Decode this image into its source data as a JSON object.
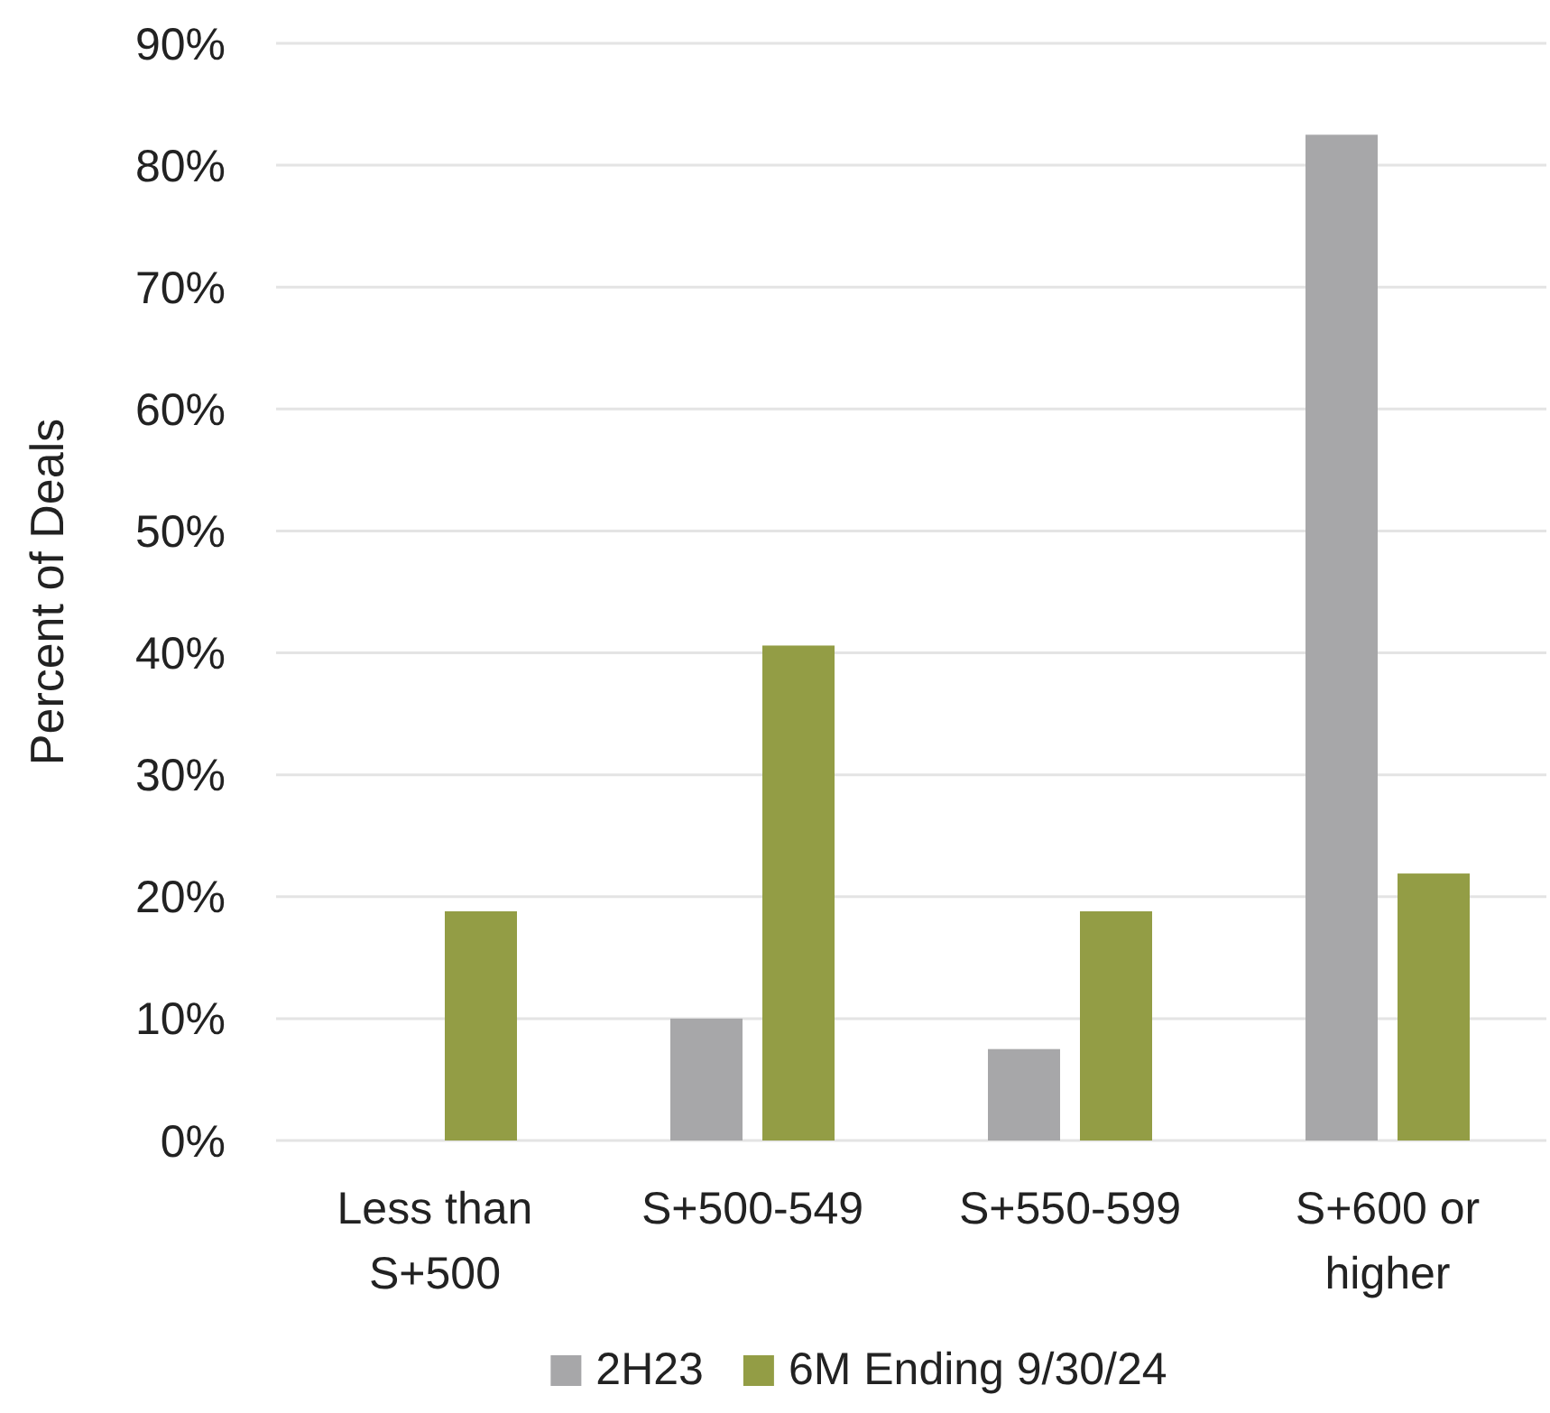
{
  "chart_data": {
    "type": "bar",
    "ylabel": "Percent of Deals",
    "categories": [
      "Less than S+500",
      "S+500-549",
      "S+550-599",
      "S+600 or higher"
    ],
    "series": [
      {
        "name": "2H23",
        "color": "#a7a7a9",
        "values": [
          0,
          10,
          7.5,
          82.5
        ]
      },
      {
        "name": "6M Ending 9/30/24",
        "color": "#939d45",
        "values": [
          18.8,
          40.6,
          18.8,
          21.9
        ]
      }
    ],
    "ylim": [
      0,
      90
    ],
    "yticks": [
      {
        "value": 0,
        "label": "0%"
      },
      {
        "value": 10,
        "label": "10%"
      },
      {
        "value": 20,
        "label": "20%"
      },
      {
        "value": 30,
        "label": "30%"
      },
      {
        "value": 40,
        "label": "40%"
      },
      {
        "value": 50,
        "label": "50%"
      },
      {
        "value": 60,
        "label": "60%"
      },
      {
        "value": 70,
        "label": "70%"
      },
      {
        "value": 80,
        "label": "80%"
      },
      {
        "value": 90,
        "label": "90%"
      }
    ],
    "grid": "y",
    "legend": "bottom"
  }
}
